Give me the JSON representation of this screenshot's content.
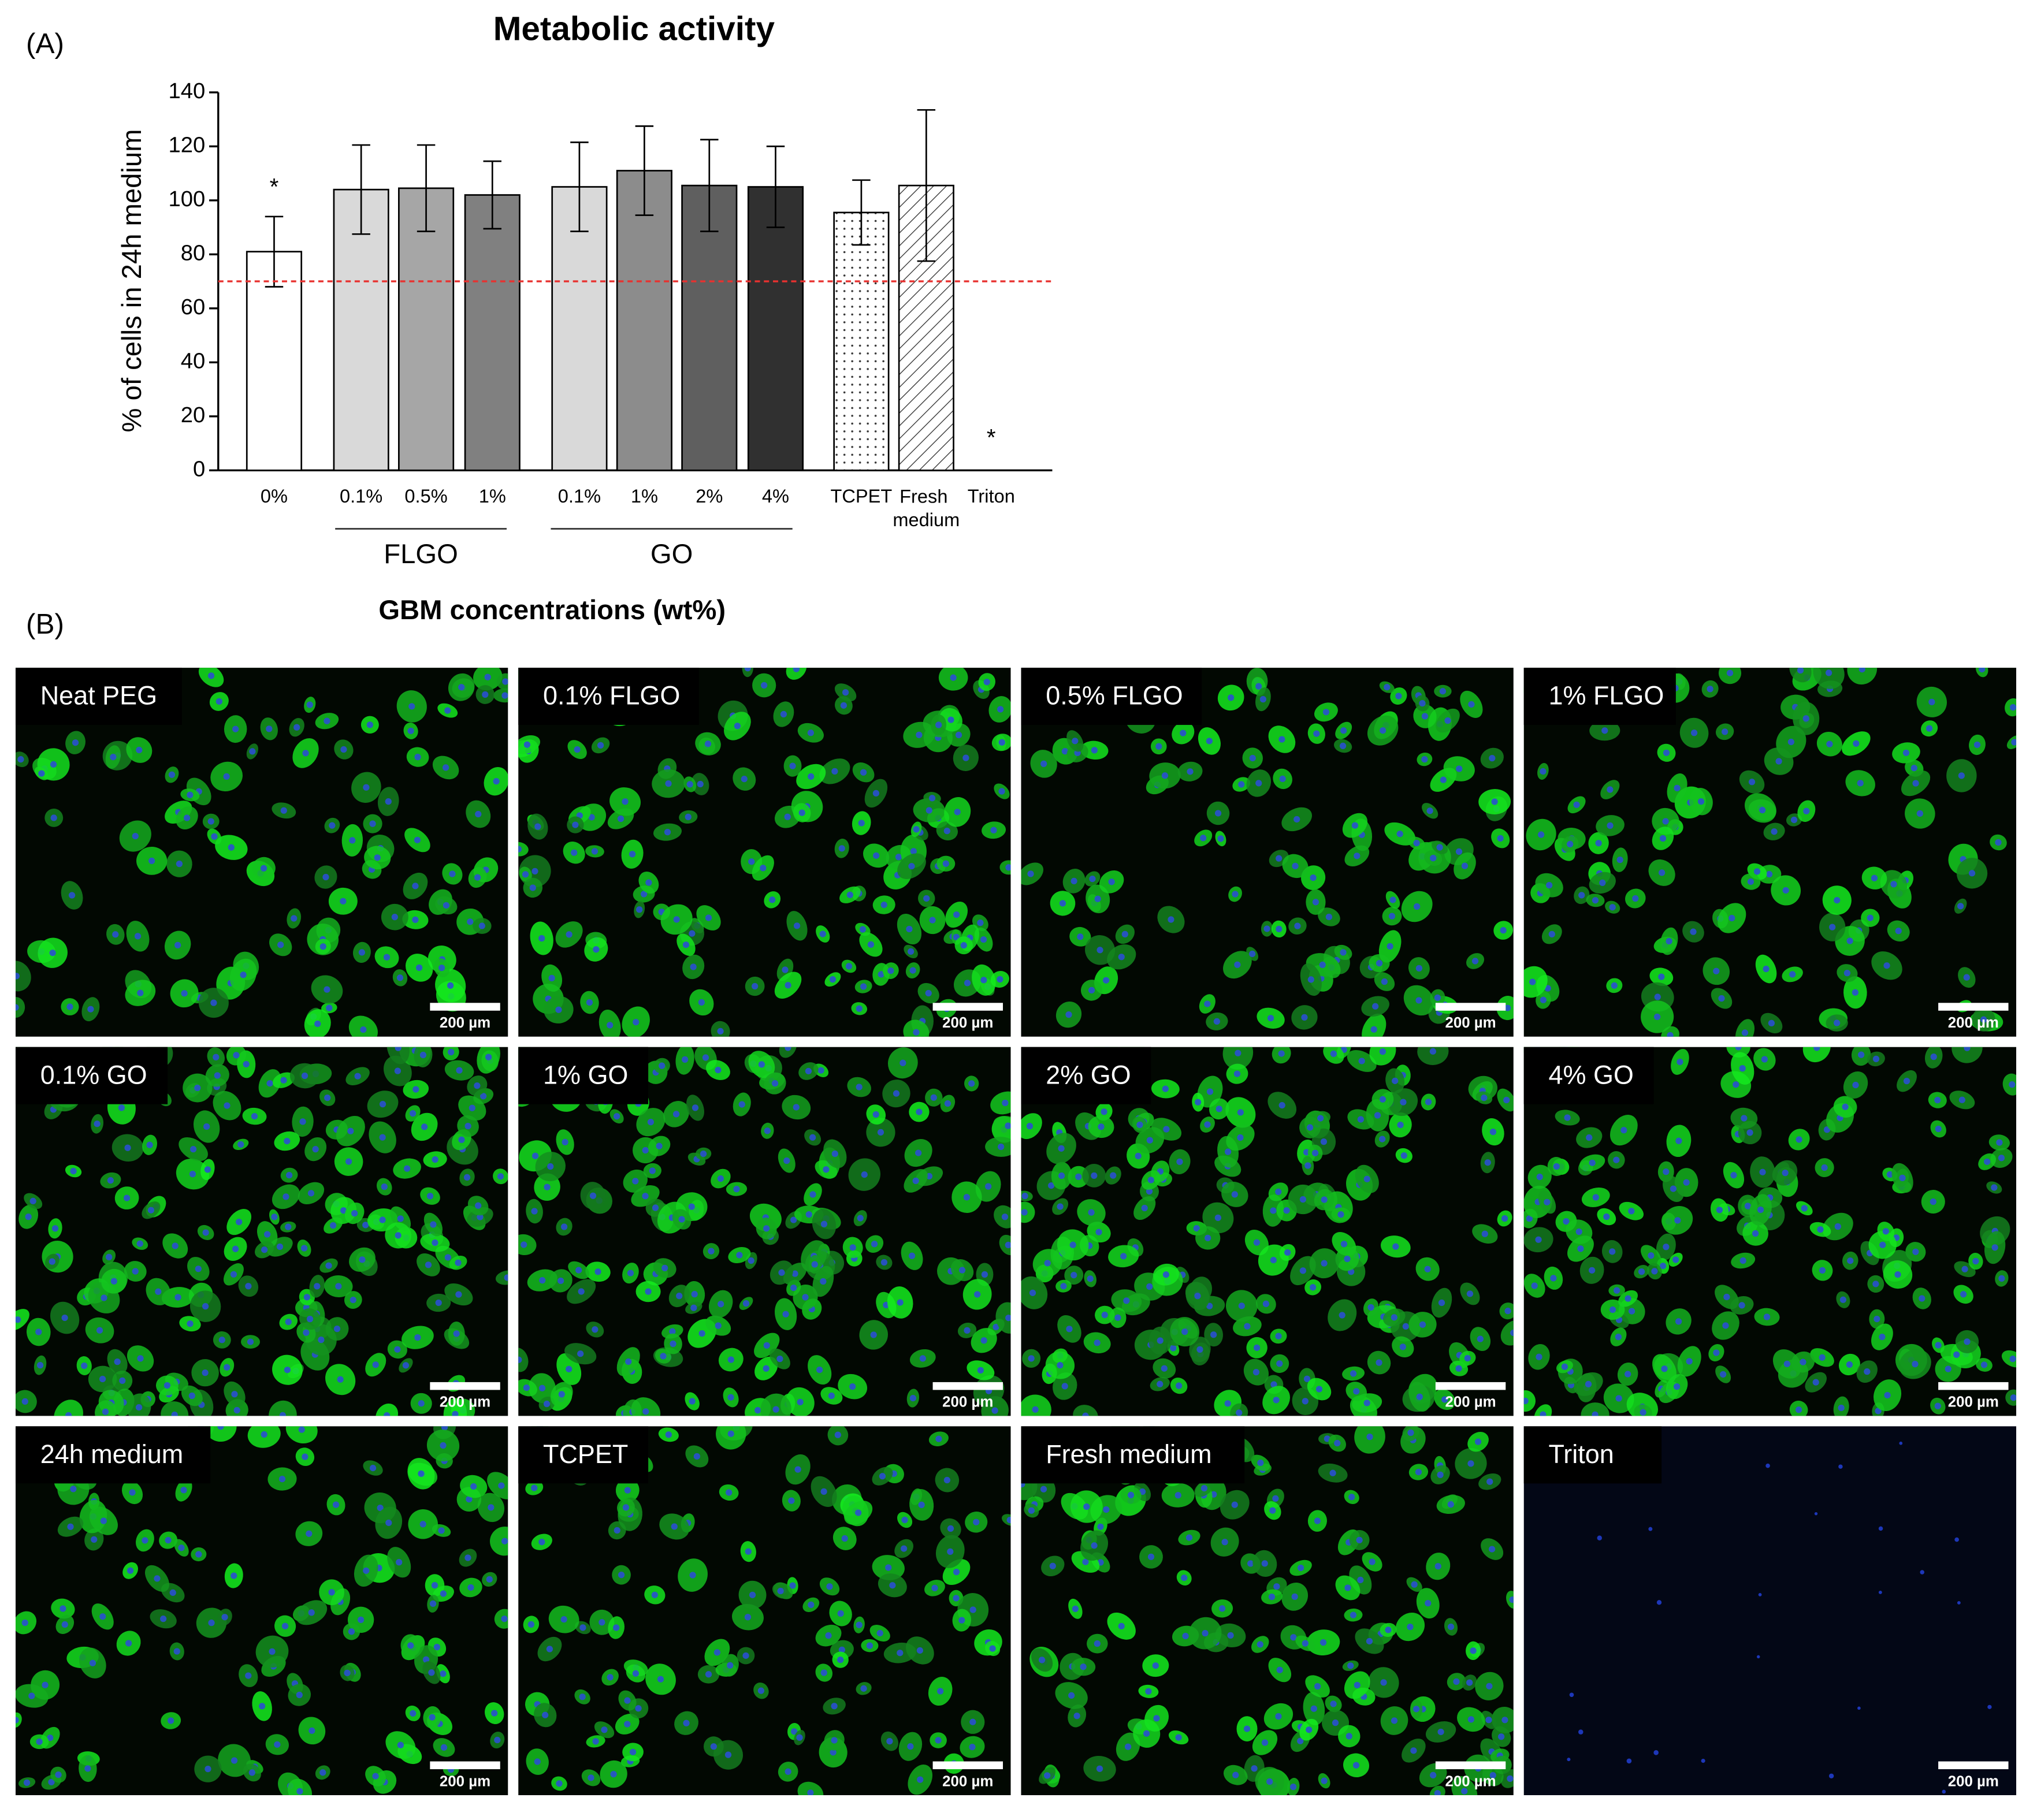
{
  "chart_data": {
    "type": "bar",
    "panel_label": "(A)",
    "title": "Metabolic activity",
    "y_label": "% of cells in 24h medium",
    "x_label": "GBM concentrations (wt%)",
    "categories": [
      "0%",
      "0.1%",
      "0.5%",
      "1%",
      "0.1%",
      "1%",
      "2%",
      "4%",
      "TCPET",
      "Fresh medium",
      "Triton"
    ],
    "group_labels": [
      "FLGO",
      "GO"
    ],
    "values": [
      81,
      104,
      104.5,
      102,
      105,
      111,
      105.5,
      105,
      95.5,
      105.5,
      0
    ],
    "errors": [
      13,
      16.5,
      16,
      12.5,
      16.5,
      16.5,
      17,
      15,
      12,
      28,
      null
    ],
    "colors": [
      "#ffffff",
      "#d9d9d9",
      "#a6a6a6",
      "#808080",
      "#d9d9d9",
      "#8c8c8c",
      "#5f5f5f",
      "#303030",
      "#ffffff",
      "#ffffff",
      "#ffffff"
    ],
    "patterns": [
      "solid",
      "solid",
      "solid",
      "solid",
      "solid",
      "solid",
      "solid",
      "solid",
      "dots",
      "hatch",
      "solid"
    ],
    "annotations": [
      "*",
      "*"
    ],
    "threshold": 70,
    "threshold_color": "#e8312f",
    "ylim": [
      0,
      140
    ],
    "yticks": [
      0,
      20,
      40,
      60,
      80,
      100,
      120,
      140
    ]
  },
  "images": {
    "panel_label": "(B)",
    "scale_bar_label": "200 µm",
    "panels": [
      "Neat PEG",
      "0.1% FLGO",
      "0.5% FLGO",
      "1% FLGO",
      "0.1% GO",
      "1% GO",
      "2% GO",
      "4% GO",
      "24h medium",
      "TCPET",
      "Fresh medium",
      "Triton"
    ]
  }
}
